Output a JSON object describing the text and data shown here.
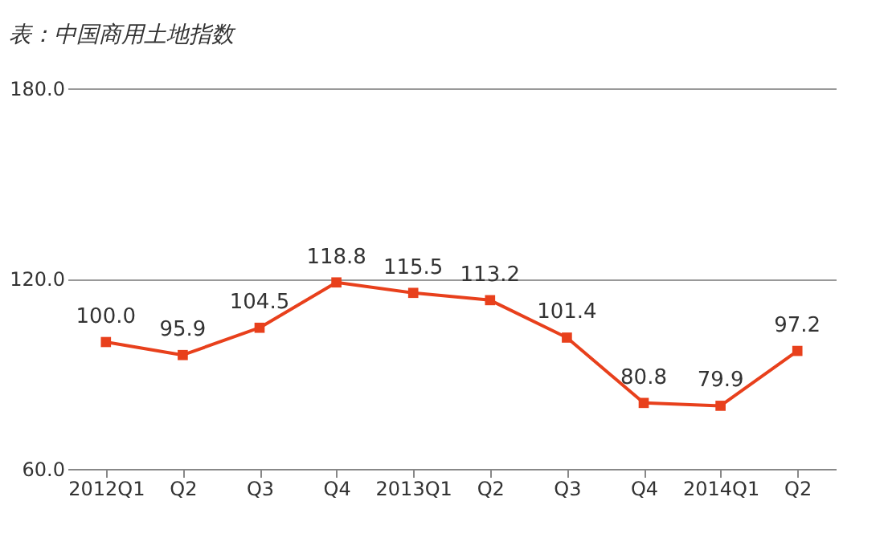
{
  "chart_data": {
    "type": "line",
    "title": "表：中国商用土地指数",
    "categories": [
      "2012Q1",
      "Q2",
      "Q3",
      "Q4",
      "2013Q1",
      "Q2",
      "Q3",
      "Q4",
      "2014Q1",
      "Q2"
    ],
    "series": [
      {
        "color": "#e8401c",
        "values": [
          100.0,
          95.9,
          104.5,
          118.8,
          115.5,
          113.2,
          101.4,
          80.8,
          79.9,
          97.2
        ],
        "value_labels": [
          "100.0",
          "95.9",
          "104.5",
          "118.8",
          "115.5",
          "113.2",
          "101.4",
          "80.8",
          "79.9",
          "97.2"
        ]
      }
    ],
    "ylim": [
      60,
      180
    ],
    "yticks": [
      {
        "value": 60,
        "label": "60.0"
      },
      {
        "value": 120,
        "label": "120.0"
      },
      {
        "value": 180,
        "label": "180.0"
      }
    ],
    "grid": "y",
    "marker": "square",
    "line_style": "solid"
  }
}
